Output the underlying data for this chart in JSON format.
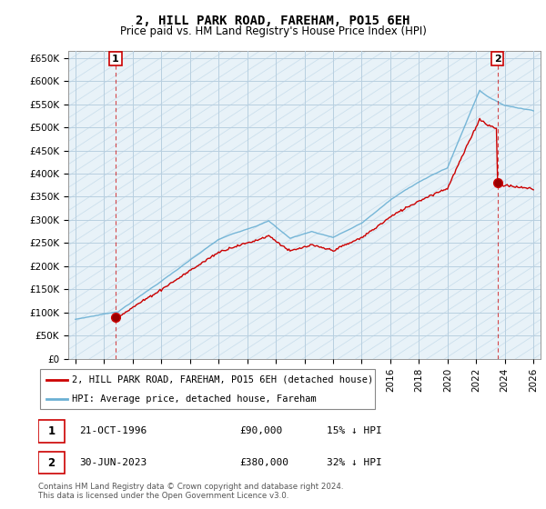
{
  "title": "2, HILL PARK ROAD, FAREHAM, PO15 6EH",
  "subtitle": "Price paid vs. HM Land Registry's House Price Index (HPI)",
  "ylabel_ticks": [
    "£0",
    "£50K",
    "£100K",
    "£150K",
    "£200K",
    "£250K",
    "£300K",
    "£350K",
    "£400K",
    "£450K",
    "£500K",
    "£550K",
    "£600K",
    "£650K"
  ],
  "ytick_values": [
    0,
    50000,
    100000,
    150000,
    200000,
    250000,
    300000,
    350000,
    400000,
    450000,
    500000,
    550000,
    600000,
    650000
  ],
  "sale1_year": 1996.81,
  "sale1_price": 90000,
  "sale2_year": 2023.5,
  "sale2_price": 380000,
  "hpi_color": "#6ab0d4",
  "price_color": "#cc0000",
  "dashed_line_color": "#cc0000",
  "bg_hatch_color": "#dce8f0",
  "legend_label_price": "2, HILL PARK ROAD, FAREHAM, PO15 6EH (detached house)",
  "legend_label_hpi": "HPI: Average price, detached house, Fareham",
  "footer": "Contains HM Land Registry data © Crown copyright and database right 2024.\nThis data is licensed under the Open Government Licence v3.0.",
  "background_color": "#ffffff",
  "grid_color": "#b8cfe0",
  "xmin": 1993.5,
  "xmax": 2026.5,
  "ymin": 0,
  "ymax": 665000
}
